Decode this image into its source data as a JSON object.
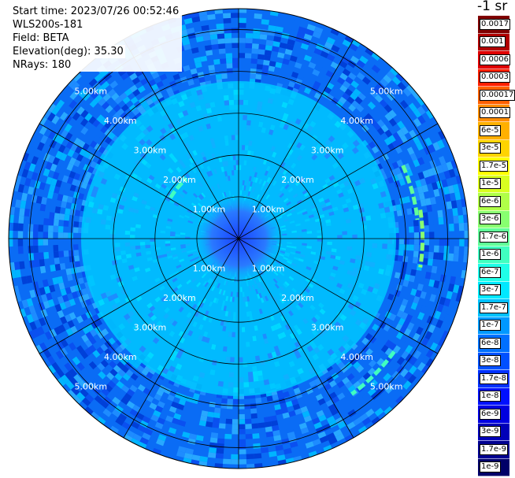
{
  "info": {
    "start_time": "Start time: 2023/07/26 00:52:46",
    "instrument": "WLS200s-181",
    "field": "Field: BETA",
    "elevation": "Elevation(deg): 35.30",
    "nrays": "NRays: 180"
  },
  "colorbar": {
    "title": "-1 sr",
    "labels": [
      "0.0017",
      "0.001",
      "0.0006",
      "0.0003",
      "0.00017",
      "0.0001",
      "6e-5",
      "3e-5",
      "1.7e-5",
      "1e-5",
      "6e-6",
      "3e-6",
      "1.7e-6",
      "1e-6",
      "6e-7",
      "3e-7",
      "1.7e-7",
      "1e-7",
      "6e-8",
      "3e-8",
      "1.7e-8",
      "1e-8",
      "6e-9",
      "3e-9",
      "1.7e-9",
      "1e-9"
    ],
    "colors": [
      "#800000",
      "#b00000",
      "#e00000",
      "#ff2000",
      "#ff6000",
      "#ff8c00",
      "#ffb000",
      "#ffd400",
      "#ffff00",
      "#d8ff20",
      "#b0ff48",
      "#88ff70",
      "#60ff98",
      "#40ffc0",
      "#20ffe8",
      "#00e8ff",
      "#00c0ff",
      "#0098ff",
      "#0070ff",
      "#0050ff",
      "#0030ff",
      "#0010ff",
      "#0000e0",
      "#0000b8",
      "#000090",
      "#000068"
    ]
  },
  "chart_data": {
    "type": "ppi",
    "field": "BETA",
    "nrays": 180,
    "range_max_km": 5.5,
    "range_rings_km": [
      1,
      2,
      3,
      4,
      5
    ],
    "ring_labels": [
      "1.00km",
      "2.00km",
      "3.00km",
      "4.00km",
      "5.00km"
    ],
    "spokes_deg": [
      0,
      30,
      60,
      90,
      120,
      150,
      180,
      210,
      240,
      270,
      300,
      330
    ],
    "background_level": "3e-8",
    "near_field_level": "1e-7",
    "features": [
      {
        "azimuth_deg": 75,
        "range_km": 4.3,
        "level": "1.7e-6"
      },
      {
        "azimuth_deg": 90,
        "range_km": 4.4,
        "level": "3e-6"
      },
      {
        "azimuth_deg": 135,
        "range_km": 4.6,
        "level": "1e-6"
      },
      {
        "azimuth_deg": 310,
        "range_km": 1.9,
        "level": "1e-6"
      }
    ],
    "colors": {
      "background": "#0070ff",
      "near_field": "#00c8ff",
      "center": "#1e50ff",
      "highlight": "#60ff98",
      "grid": "#000000"
    }
  }
}
